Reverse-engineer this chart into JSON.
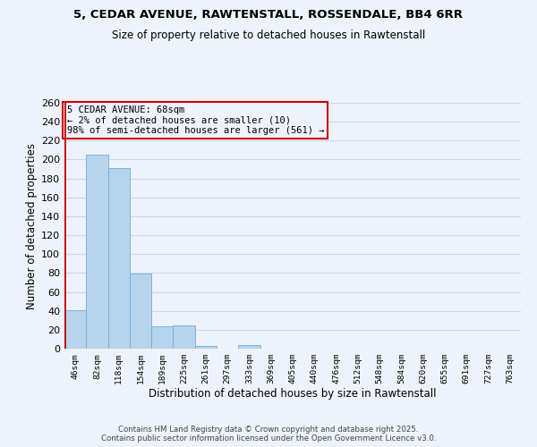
{
  "title_line1": "5, CEDAR AVENUE, RAWTENSTALL, ROSSENDALE, BB4 6RR",
  "title_line2": "Size of property relative to detached houses in Rawtenstall",
  "xlabel": "Distribution of detached houses by size in Rawtenstall",
  "ylabel": "Number of detached properties",
  "bar_labels": [
    "46sqm",
    "82sqm",
    "118sqm",
    "154sqm",
    "189sqm",
    "225sqm",
    "261sqm",
    "297sqm",
    "333sqm",
    "369sqm",
    "405sqm",
    "440sqm",
    "476sqm",
    "512sqm",
    "548sqm",
    "584sqm",
    "620sqm",
    "655sqm",
    "691sqm",
    "727sqm",
    "763sqm"
  ],
  "bar_values": [
    41,
    205,
    191,
    79,
    24,
    25,
    3,
    0,
    4,
    0,
    0,
    0,
    0,
    0,
    0,
    0,
    0,
    0,
    0,
    0,
    0
  ],
  "bar_color": "#b8d4ed",
  "bar_edge_color": "#6aafd6",
  "ylim": [
    0,
    260
  ],
  "yticks": [
    0,
    20,
    40,
    60,
    80,
    100,
    120,
    140,
    160,
    180,
    200,
    220,
    240,
    260
  ],
  "vline_color": "#cc0000",
  "annotation_title": "5 CEDAR AVENUE: 68sqm",
  "annotation_line1": "← 2% of detached houses are smaller (10)",
  "annotation_line2": "98% of semi-detached houses are larger (561) →",
  "annotation_box_color": "#cc0000",
  "footnote1": "Contains HM Land Registry data © Crown copyright and database right 2025.",
  "footnote2": "Contains public sector information licensed under the Open Government Licence v3.0.",
  "bg_color": "#eef2fb",
  "grid_color": "#c8d8ee"
}
